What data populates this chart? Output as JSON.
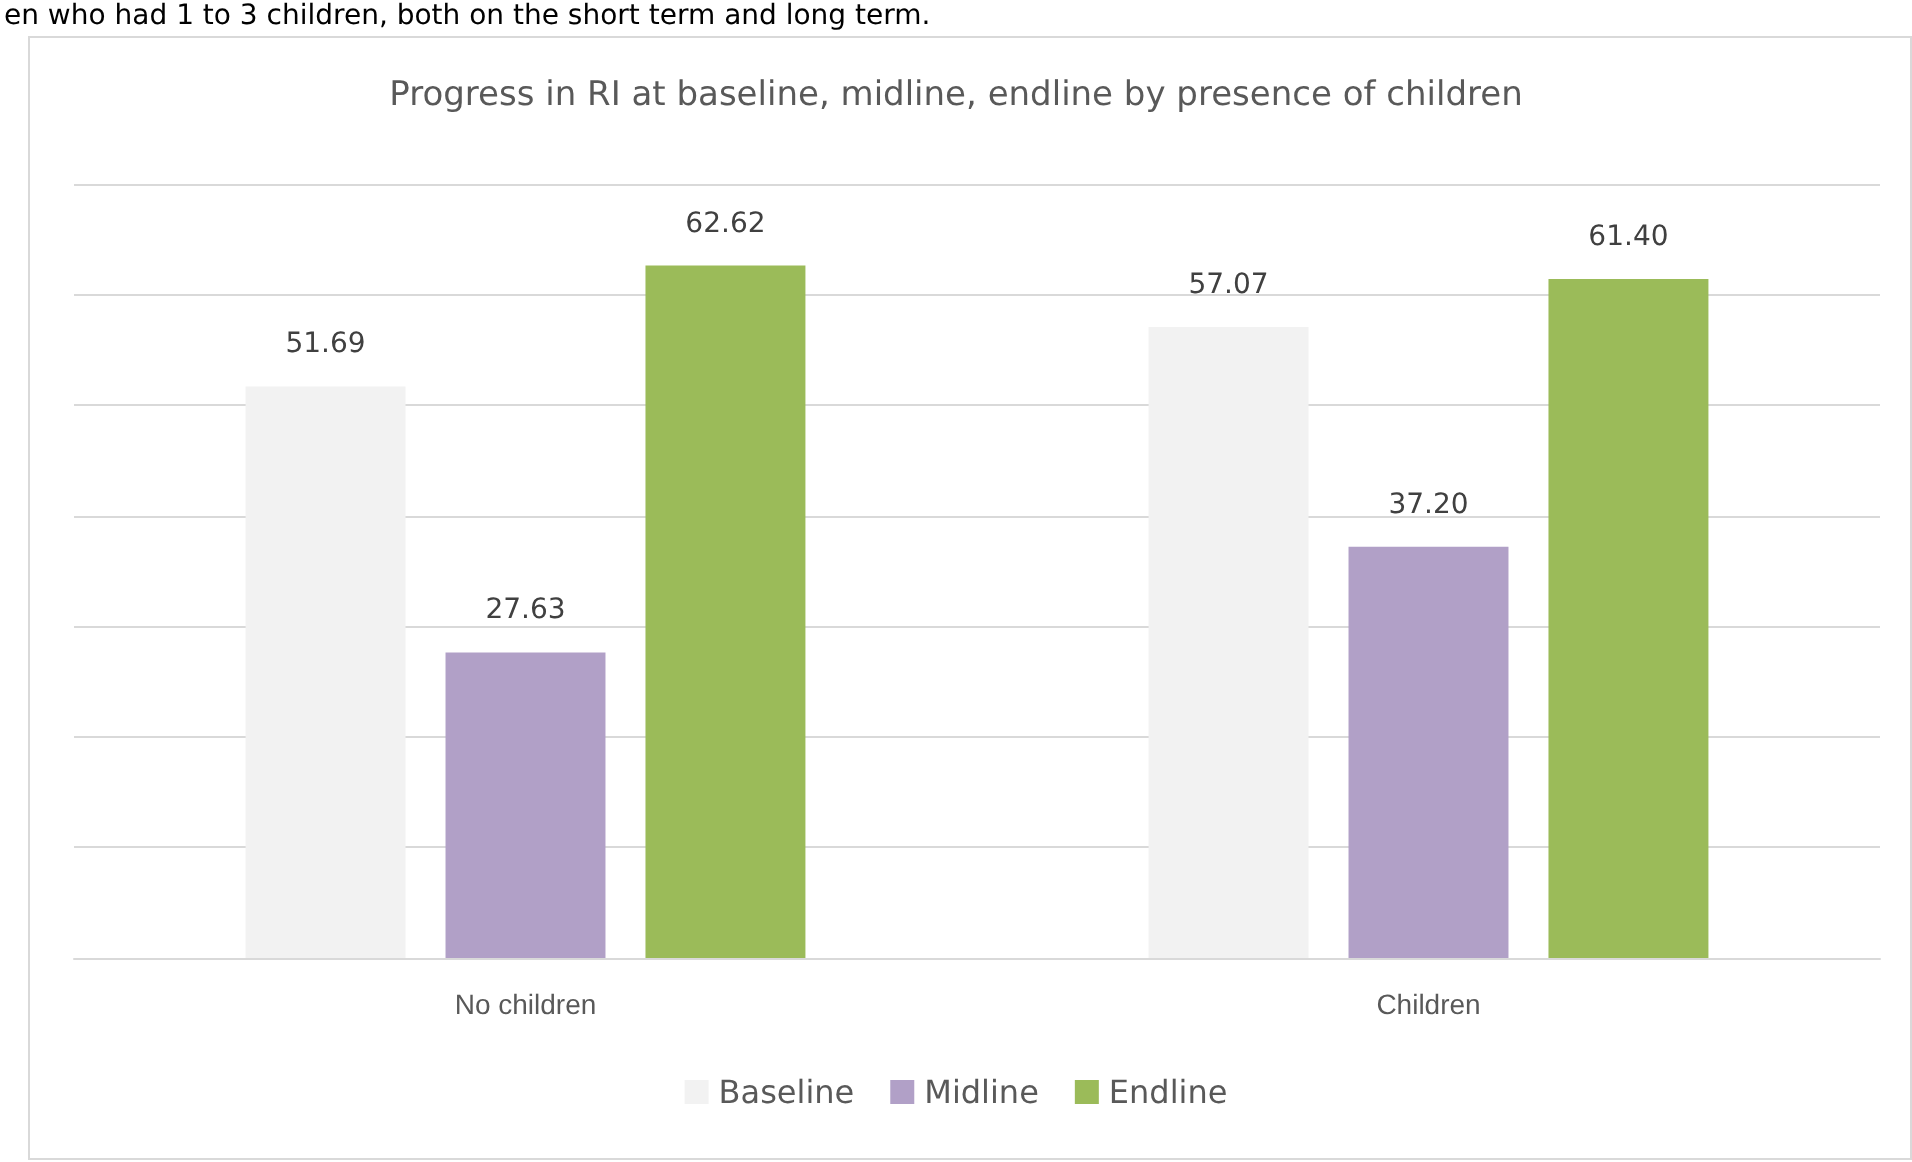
{
  "chart_data": {
    "type": "bar",
    "title": "Progress in RI at baseline, midline, endline by presence of children",
    "annotations": [
      "en who had 1 to 3 children, both on the short term and long term."
    ],
    "categories": [
      "No children",
      "Children"
    ],
    "series": [
      {
        "name": "Baseline",
        "color": "#f2f2f2",
        "values": [
          51.69,
          57.07
        ],
        "value_labels": [
          "51.69",
          "57.07"
        ]
      },
      {
        "name": "Midline",
        "color": "#b1a0c7",
        "values": [
          27.63,
          37.2
        ],
        "value_labels": [
          "27.63",
          "37.20"
        ]
      },
      {
        "name": "Endline",
        "color": "#9bbb59",
        "values": [
          62.62,
          61.4
        ],
        "value_labels": [
          "62.62",
          "61.40"
        ]
      }
    ],
    "ylim": [
      0,
      70
    ],
    "yticks": [
      {
        "value": 0,
        "label": null
      },
      {
        "value": 10,
        "label": null
      },
      {
        "value": 20,
        "label": null
      },
      {
        "value": 30,
        "label": null
      },
      {
        "value": 40,
        "label": null
      },
      {
        "value": 50,
        "label": null
      },
      {
        "value": 60,
        "label": null
      },
      {
        "value": 70,
        "label": null
      }
    ],
    "tick_labels": "x",
    "grid": "y",
    "legend": "bottom"
  }
}
